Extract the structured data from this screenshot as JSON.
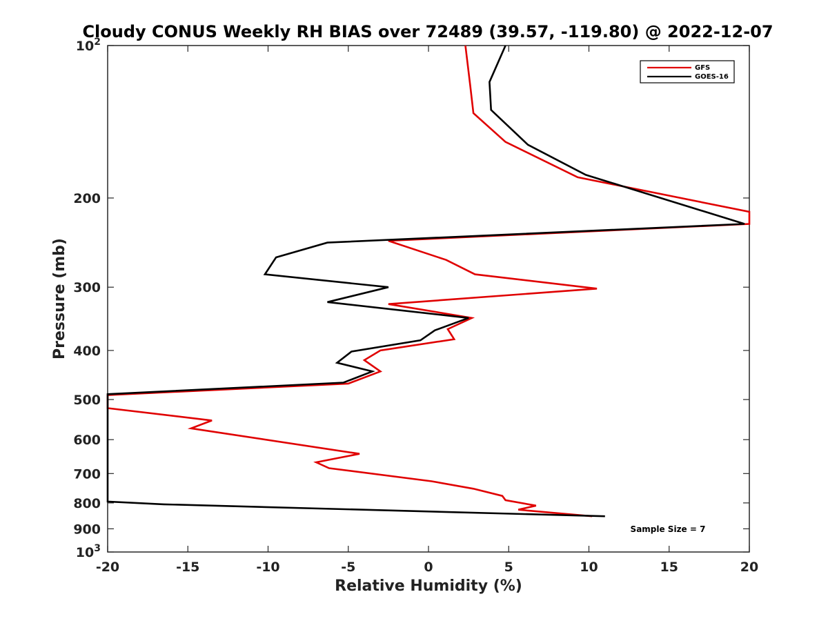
{
  "chart_data": {
    "type": "line",
    "title": "Cloudy CONUS Weekly RH BIAS over 72489 (39.57, -119.80) @ 2022-12-07",
    "xlabel": "Relative Humidity (%)",
    "ylabel": "Pressure (mb)",
    "xlim": [
      -20,
      20
    ],
    "ylim": [
      1000,
      100
    ],
    "yscale": "log",
    "yreversed": true,
    "grid": false,
    "legend_position": "top-right",
    "x_ticks": [
      "-20",
      "-15",
      "-10",
      "-5",
      "0",
      "5",
      "10",
      "15",
      "20"
    ],
    "y_ticks": [
      {
        "value": 100,
        "base": "10",
        "exp": "2"
      },
      {
        "value": 200,
        "label": "200"
      },
      {
        "value": 300,
        "label": "300"
      },
      {
        "value": 400,
        "label": "400"
      },
      {
        "value": 500,
        "label": "500"
      },
      {
        "value": 600,
        "label": "600"
      },
      {
        "value": 700,
        "label": "700"
      },
      {
        "value": 800,
        "label": "800"
      },
      {
        "value": 900,
        "label": "900"
      },
      {
        "value": 1000,
        "base": "10",
        "exp": "3"
      }
    ],
    "annotation": "Sample Size = 7",
    "series": [
      {
        "name": "GFS",
        "color": "#e00000",
        "points": [
          [
            2.3,
            100
          ],
          [
            2.6,
            120
          ],
          [
            2.8,
            136
          ],
          [
            4.8,
            155
          ],
          [
            9.3,
            182
          ],
          [
            20,
            213
          ],
          [
            20,
            225
          ],
          [
            -2.5,
            243
          ],
          [
            1.1,
            265
          ],
          [
            2.9,
            283
          ],
          [
            10.5,
            302
          ],
          [
            -2.5,
            324
          ],
          [
            2.7,
            345
          ],
          [
            1.2,
            363
          ],
          [
            1.6,
            380
          ],
          [
            -3.0,
            400
          ],
          [
            -4.0,
            418
          ],
          [
            -3.0,
            440
          ],
          [
            -5.0,
            465
          ],
          [
            -20,
            490
          ],
          [
            -20,
            520
          ],
          [
            -13.5,
            550
          ],
          [
            -14.8,
            570
          ],
          [
            -4.3,
            640
          ],
          [
            -7.0,
            665
          ],
          [
            -6.2,
            683
          ],
          [
            0.2,
            725
          ],
          [
            2.8,
            750
          ],
          [
            4.6,
            775
          ],
          [
            4.8,
            790
          ],
          [
            6.7,
            810
          ],
          [
            5.6,
            825
          ],
          [
            10.2,
            850
          ]
        ]
      },
      {
        "name": "GOES-16",
        "color": "#000000",
        "points": [
          [
            4.8,
            100
          ],
          [
            3.8,
            118
          ],
          [
            3.9,
            134
          ],
          [
            6.2,
            157
          ],
          [
            9.8,
            180
          ],
          [
            19.7,
            225
          ],
          [
            -6.3,
            245
          ],
          [
            -9.5,
            262
          ],
          [
            -10.2,
            283
          ],
          [
            -2.5,
            300
          ],
          [
            -6.3,
            321
          ],
          [
            2.5,
            345
          ],
          [
            0.4,
            365
          ],
          [
            -0.5,
            382
          ],
          [
            -4.8,
            402
          ],
          [
            -5.7,
            423
          ],
          [
            -3.5,
            440
          ],
          [
            -5.3,
            463
          ],
          [
            -20,
            488
          ],
          [
            -20,
            795
          ],
          [
            -16.5,
            805
          ],
          [
            11.0,
            850
          ]
        ]
      }
    ]
  }
}
